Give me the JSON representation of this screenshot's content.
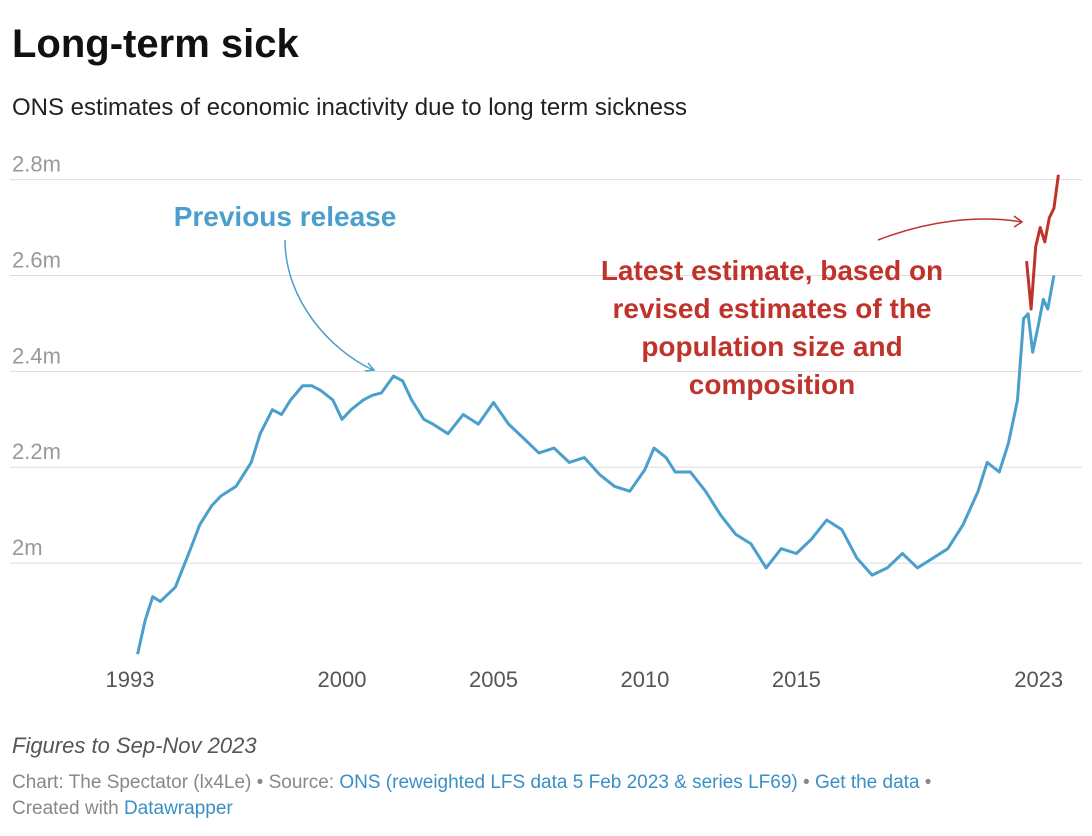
{
  "chart_data": {
    "type": "line",
    "title": "Long-term sick",
    "subtitle": "ONS estimates of economic inactivity due to long term sickness",
    "xlim": [
      1993,
      2024
    ],
    "xticks": [
      1993,
      2000,
      2005,
      2010,
      2015,
      2023
    ],
    "ylim": [
      1.8,
      2.82
    ],
    "yticks": [
      {
        "value": 2,
        "label": "2m"
      },
      {
        "value": 2.2,
        "label": "2.2m"
      },
      {
        "value": 2.4,
        "label": "2.4m"
      },
      {
        "value": 2.6,
        "label": "2.6m"
      },
      {
        "value": 2.8,
        "label": "2.8m"
      }
    ],
    "grid": true,
    "series": [
      {
        "name": "Previous release",
        "color": "#4a9fcc",
        "x": [
          1993.25,
          1993.5,
          1993.75,
          1994,
          1994.5,
          1995,
          1995.3,
          1995.7,
          1996,
          1996.5,
          1997,
          1997.3,
          1997.7,
          1998,
          1998.3,
          1998.7,
          1999,
          1999.3,
          1999.7,
          2000,
          2000.3,
          2000.7,
          2001,
          2001.3,
          2001.7,
          2002,
          2002.3,
          2002.7,
          2003,
          2003.5,
          2004,
          2004.5,
          2005,
          2005.5,
          2006,
          2006.5,
          2007,
          2007.5,
          2008,
          2008.5,
          2009,
          2009.5,
          2010,
          2010.3,
          2010.7,
          2011,
          2011.5,
          2012,
          2012.5,
          2013,
          2013.5,
          2014,
          2014.5,
          2015,
          2015.5,
          2016,
          2016.5,
          2017,
          2017.5,
          2018,
          2018.5,
          2019,
          2019.5,
          2020,
          2020.5,
          2021,
          2021.3,
          2021.7,
          2022,
          2022.3,
          2022.5,
          2022.65,
          2022.8,
          2023,
          2023.15,
          2023.3,
          2023.5
        ],
        "values": [
          1.81,
          1.88,
          1.93,
          1.92,
          1.95,
          2.03,
          2.08,
          2.12,
          2.14,
          2.16,
          2.21,
          2.27,
          2.32,
          2.31,
          2.34,
          2.37,
          2.37,
          2.36,
          2.34,
          2.3,
          2.32,
          2.34,
          2.35,
          2.355,
          2.39,
          2.38,
          2.34,
          2.3,
          2.29,
          2.27,
          2.31,
          2.29,
          2.335,
          2.29,
          2.26,
          2.23,
          2.24,
          2.21,
          2.22,
          2.185,
          2.16,
          2.15,
          2.195,
          2.24,
          2.22,
          2.19,
          2.19,
          2.15,
          2.1,
          2.06,
          2.04,
          1.99,
          2.03,
          2.02,
          2.05,
          2.09,
          2.07,
          2.01,
          1.975,
          1.99,
          2.02,
          1.99,
          2.01,
          2.03,
          2.08,
          2.15,
          2.21,
          2.19,
          2.25,
          2.34,
          2.51,
          2.52,
          2.44,
          2.5,
          2.55,
          2.53,
          2.6
        ]
      },
      {
        "name": "Latest estimate, based on revised estimates of the population size and composition",
        "color": "#c0332b",
        "x": [
          2022.6,
          2022.75,
          2022.9,
          2023.05,
          2023.2,
          2023.35,
          2023.5,
          2023.65
        ],
        "values": [
          2.63,
          2.53,
          2.66,
          2.7,
          2.67,
          2.72,
          2.74,
          2.81
        ]
      }
    ],
    "annotations": {
      "previous": "Previous release",
      "latest": [
        "Latest estimate, based on",
        "revised estimates of the",
        "population size and",
        "composition"
      ]
    },
    "notes": "Figures to Sep-Nov 2023",
    "footer": {
      "credit": "Chart: The Spectator (lx4Le)",
      "sep": "•",
      "source_label": "Source:",
      "source": "ONS (reweighted LFS data 5 Feb 2023 & series LF69)",
      "get_data": "Get the data",
      "created": "Created with",
      "tool": "Datawrapper"
    }
  }
}
